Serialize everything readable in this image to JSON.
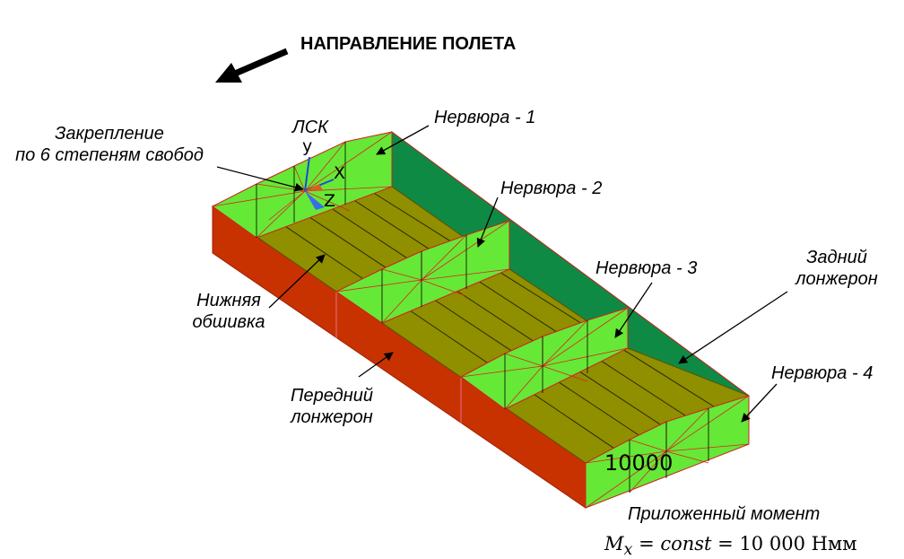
{
  "title": "НАПРАВЛЕНИЕ ПОЛЕТА",
  "labels": {
    "fixation_line1": "Закрепление",
    "fixation_line2": "по 6 степеням свобод",
    "lsk": "ЛСК",
    "rib1": "Нервюра - 1",
    "rib2": "Нервюра - 2",
    "rib3": "Нервюра - 3",
    "rib4": "Нервюра - 4",
    "rear_spar_line1": "Задний",
    "rear_spar_line2": "лонжерон",
    "lower_skin_line1": "Нижняя",
    "lower_skin_line2": "обшивка",
    "front_spar_line1": "Передний",
    "front_spar_line2": "лонжерон",
    "moment_caption": "Приложенный момент",
    "moment_symbol": "M",
    "moment_subscript": "x",
    "moment_eq1": " = ",
    "moment_const": "const",
    "moment_eq2": " = 10 000 Нмм",
    "load_value": "10000"
  },
  "axes": {
    "y": "y",
    "x": "X",
    "z": "Z"
  },
  "colors": {
    "front_spar": "#c83200",
    "rear_spar": "#0f8a45",
    "lower_skin": "#8f8f00",
    "rib": "#66e836",
    "mesh_red": "#e02020",
    "mesh_black": "#000000"
  }
}
